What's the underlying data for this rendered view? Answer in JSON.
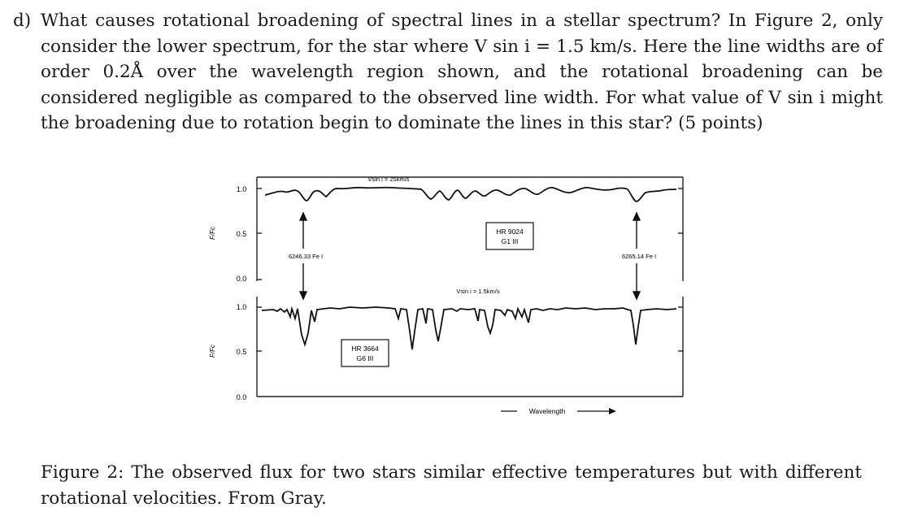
{
  "question": {
    "label": "d)",
    "text": "What causes rotational broadening of spectral lines in a stellar spectrum? In Figure 2, only consider the lower spectrum, for the star where V sin i = 1.5 km/s. Here the line widths are of order 0.2Å over the wavelength region shown, and the rotational broadening can be considered negligible as compared to the observed line width. For what value of V sin i might the broadening due to rotation begin to dominate the lines in this star? (5 points)"
  },
  "figure": {
    "upper": {
      "ylabel": "F/Fc",
      "ticks": [
        "1.0",
        "0.5",
        "0.0"
      ],
      "vsini_label": "Vsin i = 25km/s",
      "star_name": "HR 9024",
      "star_type": "G1 III"
    },
    "lower": {
      "ylabel": "F/Fc",
      "ticks": [
        "1.0",
        "0.5",
        "0.0"
      ],
      "vsini_label": "Vsin i = 1.5km/s",
      "star_name": "HR 3664",
      "star_type": "G6 III"
    },
    "line_left": "6246.33 Fe I",
    "line_right": "6265.14 Fe I",
    "xlabel": "Wavelength"
  },
  "caption": {
    "text": "Figure 2: The observed flux for two stars similar effective temperatures but with different rotational velocities. From Gray."
  }
}
